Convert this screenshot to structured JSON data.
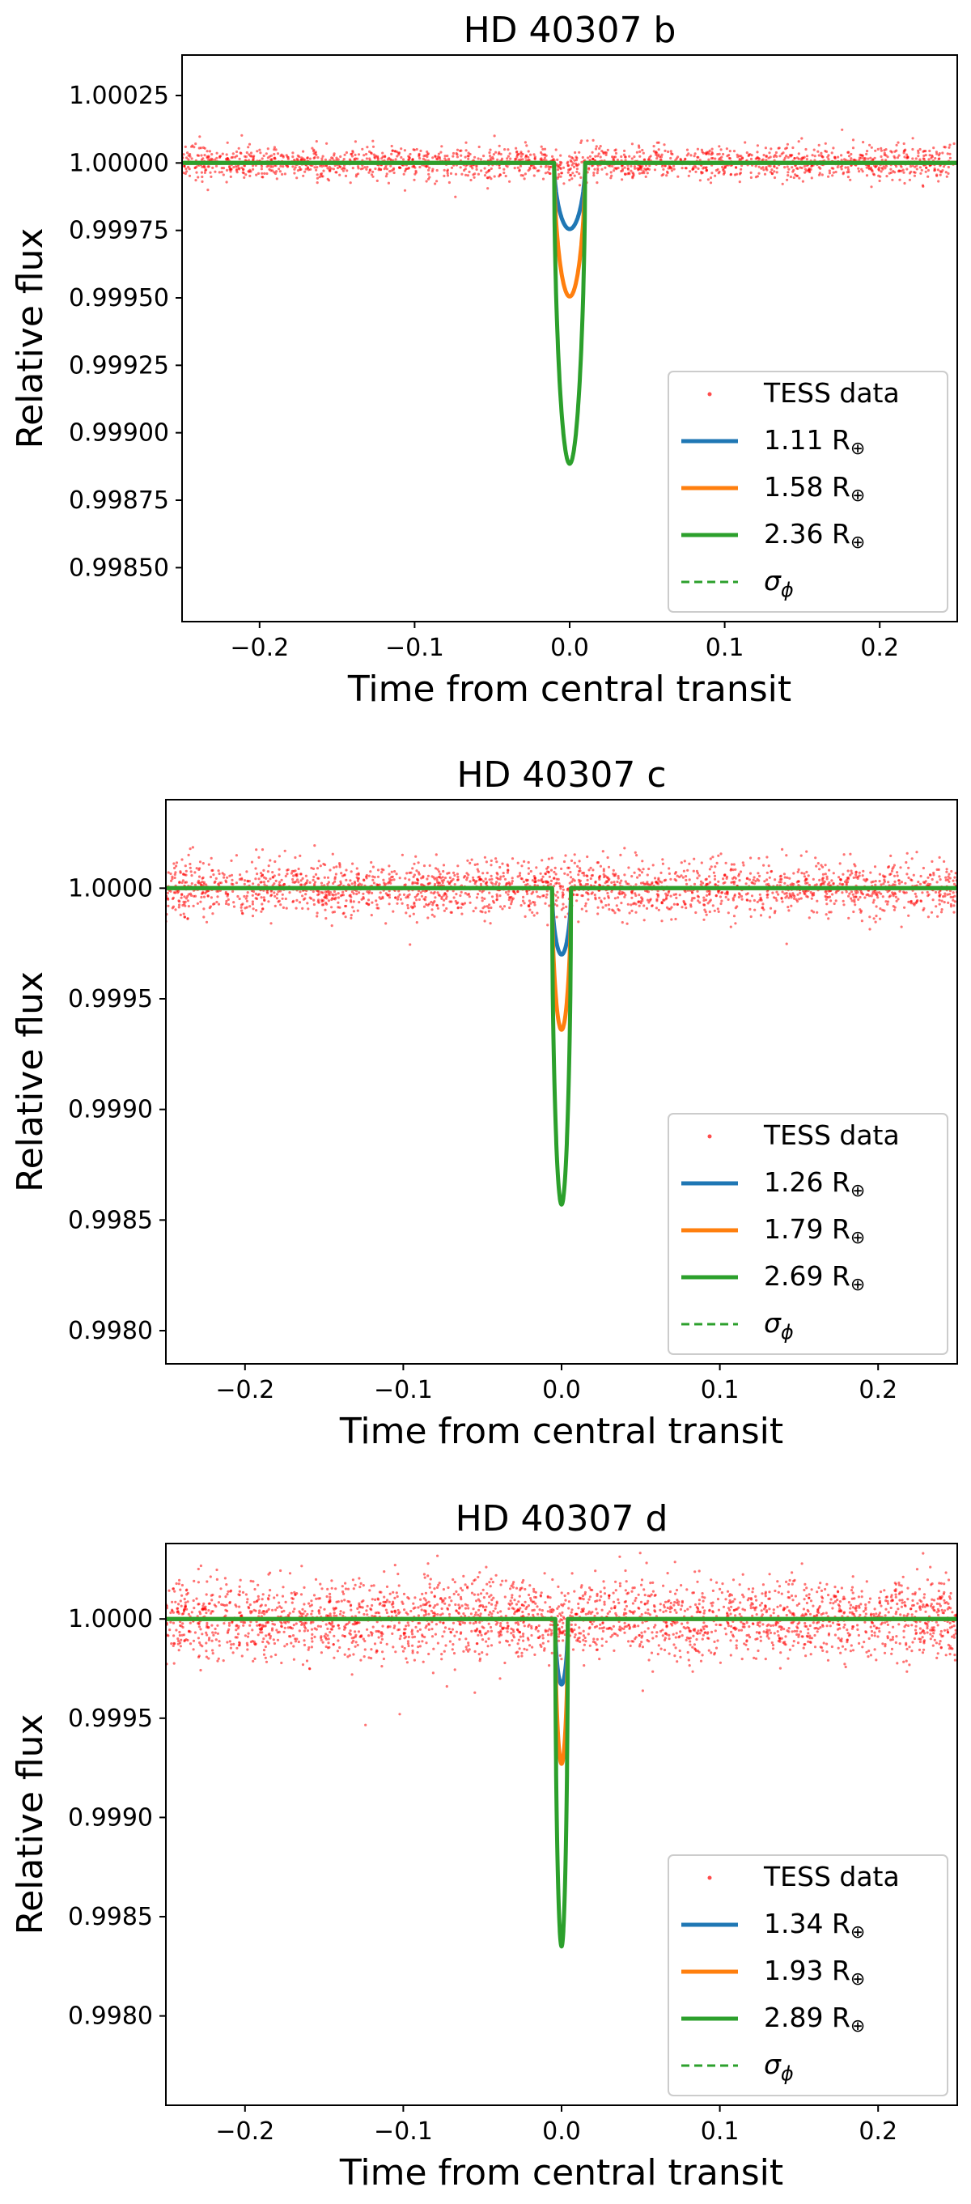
{
  "chart_data": [
    {
      "type": "line",
      "title": "HD 40307 b",
      "xlabel": "Time from central transit",
      "ylabel": "Relative flux",
      "xlim": [
        -0.25,
        0.25
      ],
      "ylim": [
        0.9983,
        1.0004
      ],
      "xticks": [
        "−0.2",
        "−0.1",
        "0.0",
        "0.1",
        "0.2"
      ],
      "xtick_values": [
        -0.2,
        -0.1,
        0.0,
        0.1,
        0.2
      ],
      "yticks": [
        "1.00025",
        "1.00000",
        "0.99975",
        "0.99950",
        "0.99925",
        "0.99900",
        "0.99875",
        "0.99850"
      ],
      "ytick_values": [
        1.00025,
        1.0,
        0.99975,
        0.9995,
        0.99925,
        0.999,
        0.99875,
        0.9985
      ],
      "grid": false,
      "legend_position": "lower-right",
      "scatter": {
        "name": "TESS data",
        "color": "#ff0000",
        "baseline": 1.0,
        "spread": 3e-05,
        "count": 1800
      },
      "transit_duration": 0.02,
      "series": [
        {
          "name": "1.11 R",
          "symbol": "⊕",
          "color": "#1f77b4",
          "depth": 0.000245
        },
        {
          "name": "1.58 R",
          "symbol": "⊕",
          "color": "#ff7f0e",
          "depth": 0.000495
        },
        {
          "name": "2.36 R",
          "symbol": "⊕",
          "color": "#2ca02c",
          "depth": 0.001115
        }
      ],
      "sigma_entry": {
        "label": "σ",
        "subscript": "ϕ",
        "color": "#2ca02c",
        "style": "dashed",
        "value": 1.0
      }
    },
    {
      "type": "line",
      "title": "HD 40307 c",
      "xlabel": "Time from central transit",
      "ylabel": "Relative flux",
      "xlim": [
        -0.25,
        0.25
      ],
      "ylim": [
        0.99785,
        1.0004
      ],
      "xticks": [
        "−0.2",
        "−0.1",
        "0.0",
        "0.1",
        "0.2"
      ],
      "xtick_values": [
        -0.2,
        -0.1,
        0.0,
        0.1,
        0.2
      ],
      "yticks": [
        "1.0000",
        "0.9995",
        "0.9990",
        "0.9985",
        "0.9980"
      ],
      "ytick_values": [
        1.0,
        0.9995,
        0.999,
        0.9985,
        0.998
      ],
      "grid": false,
      "legend_position": "lower-right",
      "scatter": {
        "name": "TESS data",
        "color": "#ff0000",
        "baseline": 1.0,
        "spread": 6e-05,
        "count": 2200
      },
      "transit_duration": 0.012,
      "series": [
        {
          "name": "1.26 R",
          "symbol": "⊕",
          "color": "#1f77b4",
          "depth": 0.0003
        },
        {
          "name": "1.79 R",
          "symbol": "⊕",
          "color": "#ff7f0e",
          "depth": 0.00064
        },
        {
          "name": "2.69 R",
          "symbol": "⊕",
          "color": "#2ca02c",
          "depth": 0.00143
        }
      ],
      "sigma_entry": {
        "label": "σ",
        "subscript": "ϕ",
        "color": "#2ca02c",
        "style": "dashed",
        "value": 1.0
      }
    },
    {
      "type": "line",
      "title": "HD 40307 d",
      "xlabel": "Time from central transit",
      "ylabel": "Relative flux",
      "xlim": [
        -0.25,
        0.25
      ],
      "ylim": [
        0.99755,
        1.00038
      ],
      "xticks": [
        "−0.2",
        "−0.1",
        "0.0",
        "0.1",
        "0.2"
      ],
      "xtick_values": [
        -0.2,
        -0.1,
        0.0,
        0.1,
        0.2
      ],
      "yticks": [
        "1.0000",
        "0.9995",
        "0.9990",
        "0.9985",
        "0.9980"
      ],
      "ytick_values": [
        1.0,
        0.9995,
        0.999,
        0.9985,
        0.998
      ],
      "grid": false,
      "legend_position": "lower-right",
      "scatter": {
        "name": "TESS data",
        "color": "#ff0000",
        "baseline": 1.0,
        "spread": 0.0001,
        "count": 2600
      },
      "transit_duration": 0.008,
      "series": [
        {
          "name": "1.34 R",
          "symbol": "⊕",
          "color": "#1f77b4",
          "depth": 0.00033
        },
        {
          "name": "1.93 R",
          "symbol": "⊕",
          "color": "#ff7f0e",
          "depth": 0.00073
        },
        {
          "name": "2.89 R",
          "symbol": "⊕",
          "color": "#2ca02c",
          "depth": 0.00165
        }
      ],
      "sigma_entry": {
        "label": "σ",
        "subscript": "ϕ",
        "color": "#2ca02c",
        "style": "dashed",
        "value": 1.0
      }
    }
  ]
}
